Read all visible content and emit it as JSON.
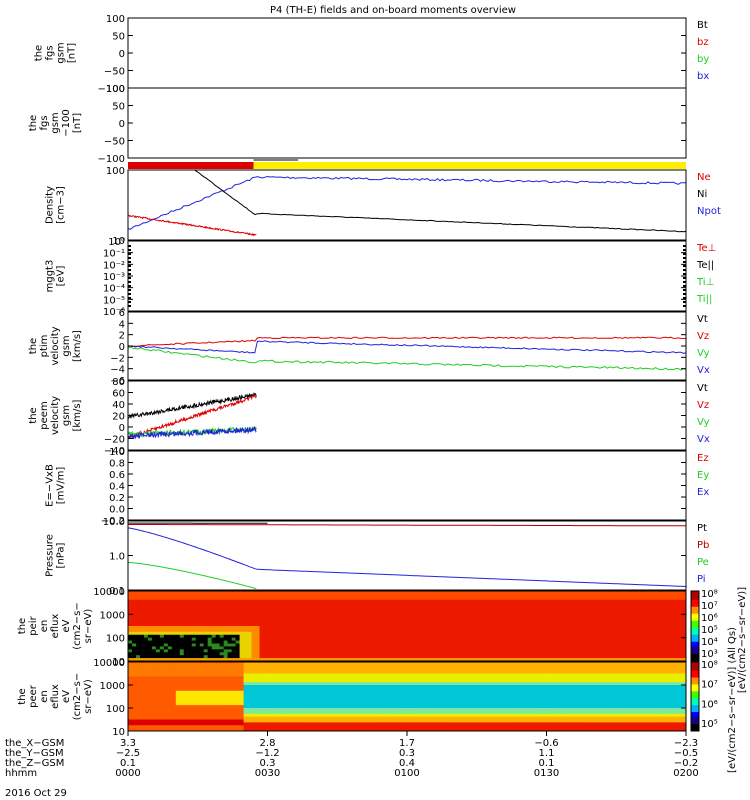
{
  "title": "P4 (TH-E) fields and on-board moments overview",
  "date_label": "2016 Oct 29",
  "colors": {
    "black": "#000000",
    "red": "#dd0000",
    "green": "#22cc22",
    "blue": "#2222dd",
    "yellow": "#ffee00",
    "darkred": "#b00000"
  },
  "chart_data": [
    {
      "type": "line",
      "ylabel": [
        "the",
        "fgs",
        "gsm",
        "[nT]"
      ],
      "yticks": [
        "100",
        "50",
        "0",
        "−50",
        "−100"
      ],
      "ylim": [
        -100,
        100
      ],
      "legend": [
        {
          "label": "Bt",
          "color": "black"
        },
        {
          "label": "bz",
          "color": "red"
        },
        {
          "label": "by",
          "color": "green"
        },
        {
          "label": "bx",
          "color": "blue"
        }
      ]
    },
    {
      "type": "line",
      "ylabel": [
        "the",
        "fgs",
        "gsm",
        "−100",
        "[nT]"
      ],
      "yticks": [
        "100",
        "50",
        "0",
        "−50",
        "−100"
      ],
      "ylim": [
        -100,
        100
      ],
      "legend": []
    },
    {
      "type": "bar",
      "name": "mode-bar",
      "segments": [
        {
          "from": "0000",
          "to": "0027",
          "color": "red"
        },
        {
          "from": "0027",
          "to": "0200",
          "color": "yellow"
        }
      ]
    },
    {
      "type": "line",
      "ylabel": [
        "Density",
        "[cm−3]"
      ],
      "yticks": [
        "100",
        "10"
      ],
      "scale": "log",
      "legend": [
        {
          "label": "Ne",
          "color": "red"
        },
        {
          "label": "Ni",
          "color": "black"
        },
        {
          "label": "Npot",
          "color": "blue"
        }
      ]
    },
    {
      "type": "line",
      "ylabel": [
        "mggt3",
        "[eV]"
      ],
      "yticks": [
        "10⁰",
        "10⁻¹",
        "10⁻²",
        "10⁻³",
        "10⁻⁴",
        "10⁻⁵",
        "10⁻⁶"
      ],
      "scale": "log",
      "legend": [
        {
          "label": "Te⊥",
          "color": "red"
        },
        {
          "label": "Te||",
          "color": "black"
        },
        {
          "label": "Ti⊥",
          "color": "green"
        },
        {
          "label": "Ti||",
          "color": "green"
        }
      ]
    },
    {
      "type": "line",
      "ylabel": [
        "the",
        "ptim",
        "velocity",
        "gsm",
        "[km/s]"
      ],
      "yticks": [
        "6",
        "4",
        "2",
        "0",
        "−2",
        "−4",
        "−6"
      ],
      "ylim": [
        -6,
        6
      ],
      "legend": [
        {
          "label": "Vt",
          "color": "black"
        },
        {
          "label": "Vz",
          "color": "red"
        },
        {
          "label": "Vy",
          "color": "green"
        },
        {
          "label": "Vx",
          "color": "blue"
        }
      ]
    },
    {
      "type": "line",
      "ylabel": [
        "the",
        "peem",
        "velocity",
        "gsm",
        "[km/s]"
      ],
      "yticks": [
        "80",
        "60",
        "40",
        "20",
        "0",
        "−20",
        "−40"
      ],
      "ylim": [
        -40,
        80
      ],
      "legend": [
        {
          "label": "Vt",
          "color": "black"
        },
        {
          "label": "Vz",
          "color": "red"
        },
        {
          "label": "Vy",
          "color": "green"
        },
        {
          "label": "Vx",
          "color": "blue"
        }
      ]
    },
    {
      "type": "line",
      "ylabel": [
        "E=−VxB",
        "[mV/m]"
      ],
      "yticks": [
        "1.0",
        "0.8",
        "0.6",
        "0.4",
        "0.2",
        "0.0",
        "−0.2"
      ],
      "ylim": [
        -0.2,
        1.0
      ],
      "legend": [
        {
          "label": "Ez",
          "color": "red"
        },
        {
          "label": "Ey",
          "color": "green"
        },
        {
          "label": "Ex",
          "color": "blue"
        }
      ]
    },
    {
      "type": "line",
      "ylabel": [
        "Pressure",
        "[nPa]"
      ],
      "yticks": [
        "10.0",
        "1.0",
        "0.1"
      ],
      "scale": "log",
      "legend": [
        {
          "label": "Pt",
          "color": "black"
        },
        {
          "label": "Pb",
          "color": "darkred"
        },
        {
          "label": "Pe",
          "color": "green"
        },
        {
          "label": "Pi",
          "color": "blue"
        }
      ]
    },
    {
      "type": "heatmap",
      "ylabel": [
        "the",
        "peir",
        "en",
        "eflux",
        "eV",
        "(cm2−s−",
        "sr−eV)"
      ],
      "yticks": [
        "10000",
        "1000",
        "100",
        "10"
      ],
      "scale": "log"
    },
    {
      "type": "heatmap",
      "ylabel": [
        "the",
        "peer",
        "en",
        "eflux",
        "eV",
        "(cm2−s−",
        "sr−eV)"
      ],
      "yticks": [
        "10000",
        "1000",
        "100",
        "10"
      ],
      "scale": "log"
    }
  ],
  "colorbars": [
    {
      "ticks": [
        "10⁸",
        "10⁷",
        "10⁶",
        "10⁵",
        "10⁴",
        "10³"
      ]
    },
    {
      "ticks": [
        "10⁸",
        "10⁷",
        "10⁶",
        "10⁵"
      ]
    }
  ],
  "colorbar_label": "[eV/(cm2−s−sr−eV)] (All Qs)",
  "colorbar_label_overlap": "[eV/(cm2−s−sr−eV)]",
  "x_axis": {
    "row_labels": [
      "the_X−GSM",
      "the_Y−GSM",
      "the_Z−GSM",
      "hhmm"
    ],
    "columns": [
      {
        "x": "3.3",
        "y": "−2.5",
        "z": "0.1",
        "t": "0000"
      },
      {
        "x": "2.8",
        "y": "−1.2",
        "z": "0.3",
        "t": "0030"
      },
      {
        "x": "1.7",
        "y": "0.3",
        "z": "0.4",
        "t": "0100"
      },
      {
        "x": "−0.6",
        "y": "1.1",
        "z": "0.1",
        "t": "0130"
      },
      {
        "x": "−2.3",
        "y": "−0.5",
        "z": "−0.2",
        "t": "0200"
      }
    ]
  }
}
